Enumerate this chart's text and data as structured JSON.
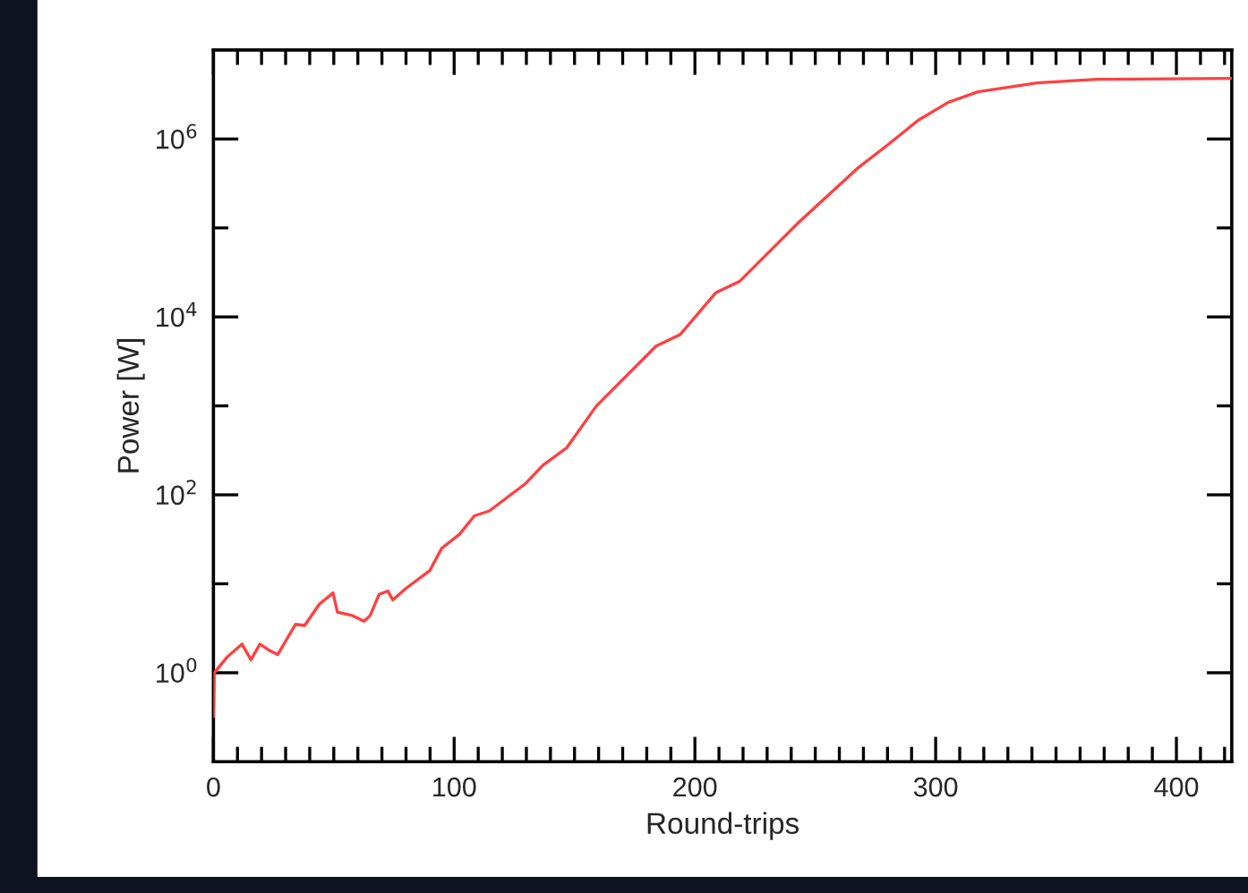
{
  "chart_data": {
    "type": "line",
    "xlabel": "Round-trips",
    "ylabel": "Power [W]",
    "log": "y",
    "grid": false,
    "legend": false,
    "xlim": [
      0,
      423
    ],
    "ylim": [
      0.1,
      10000000
    ],
    "xticks": [
      0,
      {
        "value": 10,
        "label": null
      },
      {
        "value": 20,
        "label": null
      },
      {
        "value": 30,
        "label": null
      },
      {
        "value": 40,
        "label": null
      },
      {
        "value": 50,
        "label": null
      },
      {
        "value": 60,
        "label": null
      },
      {
        "value": 70,
        "label": null
      },
      {
        "value": 80,
        "label": null
      },
      {
        "value": 90,
        "label": null
      },
      100,
      {
        "value": 110,
        "label": null
      },
      {
        "value": 120,
        "label": null
      },
      {
        "value": 130,
        "label": null
      },
      {
        "value": 140,
        "label": null
      },
      {
        "value": 150,
        "label": null
      },
      {
        "value": 160,
        "label": null
      },
      {
        "value": 170,
        "label": null
      },
      {
        "value": 180,
        "label": null
      },
      {
        "value": 190,
        "label": null
      },
      200,
      {
        "value": 210,
        "label": null
      },
      {
        "value": 220,
        "label": null
      },
      {
        "value": 230,
        "label": null
      },
      {
        "value": 240,
        "label": null
      },
      {
        "value": 250,
        "label": null
      },
      {
        "value": 260,
        "label": null
      },
      {
        "value": 270,
        "label": null
      },
      {
        "value": 280,
        "label": null
      },
      {
        "value": 290,
        "label": null
      },
      300,
      {
        "value": 310,
        "label": null
      },
      {
        "value": 320,
        "label": null
      },
      {
        "value": 330,
        "label": null
      },
      {
        "value": 340,
        "label": null
      },
      {
        "value": 350,
        "label": null
      },
      {
        "value": 360,
        "label": null
      },
      {
        "value": 370,
        "label": null
      },
      {
        "value": 380,
        "label": null
      },
      {
        "value": 390,
        "label": null
      },
      400,
      {
        "value": 410,
        "label": null
      },
      {
        "value": 420,
        "label": null
      }
    ],
    "yticks": [
      {
        "value": 1,
        "label": "10$^{0}$"
      },
      {
        "value": 10,
        "label": null
      },
      {
        "value": 100,
        "label": "10$^{2}$"
      },
      {
        "value": 1000,
        "label": null
      },
      {
        "value": 10000,
        "label": "10$^{4}$"
      },
      {
        "value": 100000,
        "label": null
      },
      {
        "value": 1000000,
        "label": "10$^{6}$"
      }
    ],
    "marker": "none",
    "line_style": "solid",
    "series": [
      {
        "color": "#ff4040",
        "x": [
          0,
          0.4,
          5.7,
          11.9,
          15.6,
          19.3,
          23,
          26.7,
          34.1,
          37.9,
          44,
          49.7,
          51.5,
          57.7,
          62.6,
          65.1,
          68.8,
          72.5,
          74.5,
          80,
          89.8,
          94.8,
          102.2,
          108.4,
          114.6,
          129.4,
          136.8,
          146.8,
          159.1,
          183.9,
          193.8,
          208.6,
          218.5,
          243.3,
          268,
          280.4,
          292.7,
          305.1,
          317.5,
          342.2,
          366.9,
          423
        ],
        "values": [
          0.32,
          1,
          1.5,
          2.1,
          1.4,
          2.1,
          1.8,
          1.6,
          3.5,
          3.4,
          5.9,
          7.9,
          4.8,
          4.4,
          3.8,
          4.4,
          7.6,
          8.3,
          6.6,
          8.9,
          14,
          25,
          36,
          58,
          66,
          132,
          214,
          339,
          1000,
          4700,
          6300,
          18600,
          25000,
          117000,
          479000,
          871000,
          1620000,
          2570000,
          3390000,
          4270000,
          4680000,
          4790000
        ]
      }
    ]
  }
}
